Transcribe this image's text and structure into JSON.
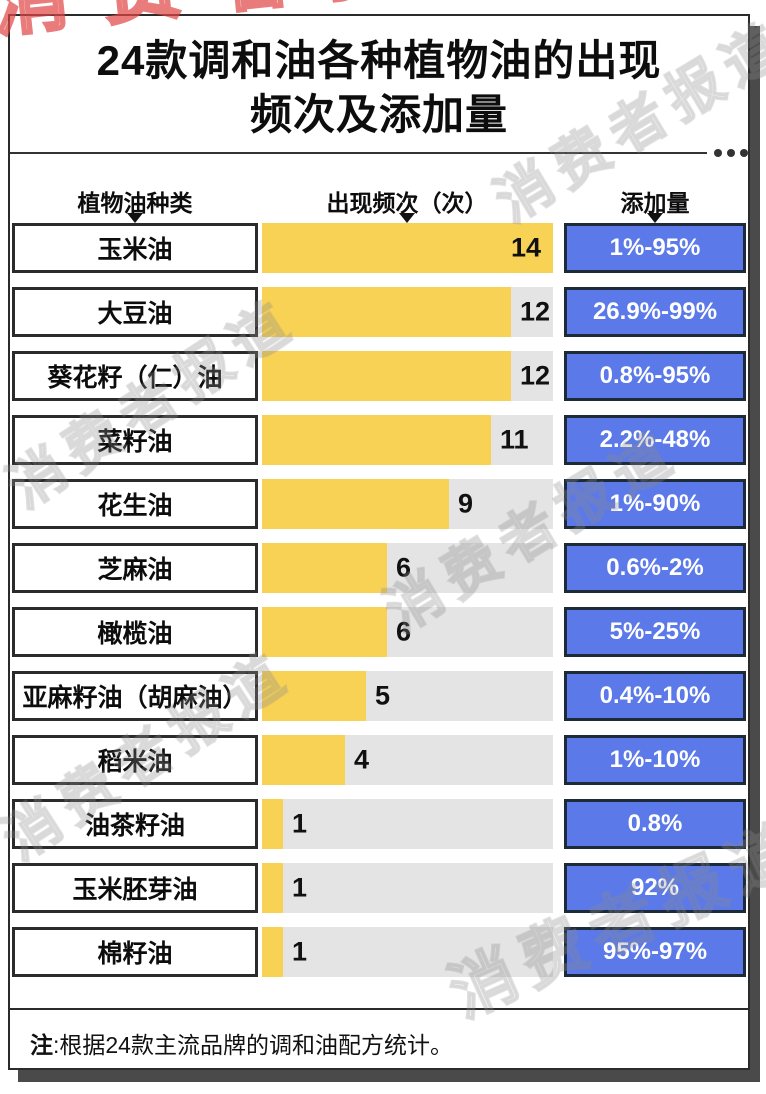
{
  "title": {
    "line1": "24款调和油各种植物油的出现",
    "line2": "频次及添加量"
  },
  "columns": [
    {
      "label": "植物油种类"
    },
    {
      "label": "出现频次（次）"
    },
    {
      "label": "添加量"
    }
  ],
  "rows": [
    {
      "name": "玉米油",
      "count": 14,
      "amount": "1%-95%"
    },
    {
      "name": "大豆油",
      "count": 12,
      "amount": "26.9%-99%"
    },
    {
      "name": "葵花籽（仁）油",
      "count": 12,
      "amount": "0.8%-95%"
    },
    {
      "name": "菜籽油",
      "count": 11,
      "amount": "2.2%-48%"
    },
    {
      "name": "花生油",
      "count": 9,
      "amount": "1%-90%"
    },
    {
      "name": "芝麻油",
      "count": 6,
      "amount": "0.6%-2%"
    },
    {
      "name": "橄榄油",
      "count": 6,
      "amount": "5%-25%"
    },
    {
      "name": "亚麻籽油（胡麻油）",
      "count": 5,
      "amount": "0.4%-10%"
    },
    {
      "name": "稻米油",
      "count": 4,
      "amount": "1%-10%"
    },
    {
      "name": "油茶籽油",
      "count": 1,
      "amount": "0.8%"
    },
    {
      "name": "玉米胚芽油",
      "count": 1,
      "amount": "92%"
    },
    {
      "name": "棉籽油",
      "count": 1,
      "amount": "95%-97%"
    }
  ],
  "chart_data": {
    "type": "bar",
    "orientation": "horizontal",
    "title": "24款调和油各种植物油的出现频次及添加量",
    "categories": [
      "玉米油",
      "大豆油",
      "葵花籽（仁）油",
      "菜籽油",
      "花生油",
      "芝麻油",
      "橄榄油",
      "亚麻籽油（胡麻油）",
      "稻米油",
      "油茶籽油",
      "玉米胚芽油",
      "棉籽油"
    ],
    "series": [
      {
        "name": "出现频次（次）",
        "values": [
          14,
          12,
          12,
          11,
          9,
          6,
          6,
          5,
          4,
          1,
          1,
          1
        ]
      },
      {
        "name": "添加量",
        "values": [
          "1%-95%",
          "26.9%-99%",
          "0.8%-95%",
          "2.2%-48%",
          "1%-90%",
          "0.6%-2%",
          "5%-25%",
          "0.4%-10%",
          "1%-10%",
          "0.8%",
          "92%",
          "95%-97%"
        ]
      }
    ],
    "xlim": [
      0,
      14
    ],
    "grid": false,
    "legend_position": "none",
    "bar_color": "#f8d254",
    "track_color": "#e4e4e4",
    "amount_badge_color": "#5b79e8"
  },
  "note": {
    "label": "注",
    "text": ":根据24款主流品牌的调和油配方统计。"
  },
  "watermark": {
    "text": "消费者报道"
  },
  "icons": {
    "more_options": "three-dots",
    "column_pointer": "triangle-down"
  },
  "colors": {
    "bar_yellow": "#f8d254",
    "track_gray": "#e4e4e4",
    "amount_blue": "#5b79e8",
    "amount_border": "#1c2a3a",
    "box_border": "#2b2b2b",
    "card_shadow": "#4a4a4a",
    "watermark_red": "#e04646"
  }
}
